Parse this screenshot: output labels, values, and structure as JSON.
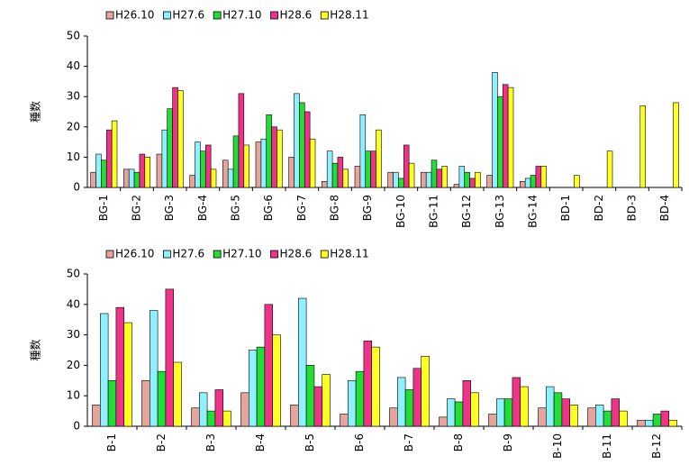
{
  "chart_data": [
    {
      "type": "bar",
      "y_label": "種数",
      "categories": [
        "BG-1",
        "BG-2",
        "BG-3",
        "BG-4",
        "BG-5",
        "BG-6",
        "BG-7",
        "BG-8",
        "BG-9",
        "BG-10",
        "BG-11",
        "BG-12",
        "BG-13",
        "BG-14",
        "BD-1",
        "BD-2",
        "BD-3",
        "BD-4"
      ],
      "series": [
        {
          "name": "H26.10",
          "color": "#e6a49a",
          "values": [
            5,
            6,
            11,
            4,
            9,
            15,
            10,
            2,
            7,
            5,
            5,
            1,
            4,
            2,
            null,
            null,
            null,
            null
          ]
        },
        {
          "name": "H27.6",
          "color": "#8ff0ff",
          "values": [
            11,
            6,
            19,
            15,
            6,
            16,
            31,
            12,
            24,
            5,
            5,
            7,
            38,
            3,
            null,
            null,
            null,
            null
          ]
        },
        {
          "name": "H27.10",
          "color": "#22dd33",
          "values": [
            9,
            5,
            26,
            12,
            17,
            24,
            28,
            8,
            12,
            3,
            9,
            5,
            30,
            4,
            null,
            null,
            null,
            null
          ]
        },
        {
          "name": "H28.6",
          "color": "#ee3388",
          "values": [
            19,
            11,
            33,
            14,
            31,
            20,
            25,
            10,
            12,
            14,
            6,
            3,
            34,
            7,
            null,
            null,
            null,
            null
          ]
        },
        {
          "name": "H28.11",
          "color": "#ffff22",
          "values": [
            22,
            10,
            32,
            6,
            14,
            19,
            16,
            6,
            19,
            8,
            7,
            5,
            33,
            7,
            4,
            12,
            27,
            28
          ]
        }
      ],
      "ylim": [
        0,
        50
      ],
      "yticks": [
        0,
        10,
        20,
        30,
        40,
        50
      ],
      "legend": "top-left"
    },
    {
      "type": "bar",
      "y_label": "種数",
      "categories": [
        "B-1",
        "B-2",
        "B-3",
        "B-4",
        "B-5",
        "B-6",
        "B-7",
        "B-8",
        "B-9",
        "B-10",
        "B-11",
        "B-12"
      ],
      "series": [
        {
          "name": "H26.10",
          "color": "#e6a49a",
          "values": [
            7,
            15,
            6,
            11,
            7,
            4,
            6,
            3,
            4,
            6,
            6,
            2
          ]
        },
        {
          "name": "H27.6",
          "color": "#8ff0ff",
          "values": [
            37,
            38,
            11,
            25,
            42,
            15,
            16,
            9,
            9,
            13,
            7,
            2
          ]
        },
        {
          "name": "H27.10",
          "color": "#22dd33",
          "values": [
            15,
            18,
            5,
            26,
            20,
            18,
            12,
            8,
            9,
            11,
            5,
            4
          ]
        },
        {
          "name": "H28.6",
          "color": "#ee3388",
          "values": [
            39,
            45,
            12,
            40,
            13,
            28,
            19,
            15,
            16,
            9,
            9,
            5
          ]
        },
        {
          "name": "H28.11",
          "color": "#ffff22",
          "values": [
            34,
            21,
            5,
            30,
            17,
            26,
            23,
            11,
            13,
            7,
            5,
            2
          ]
        }
      ],
      "ylim": [
        0,
        50
      ],
      "yticks": [
        0,
        10,
        20,
        30,
        40,
        50
      ],
      "legend": "top-left"
    }
  ]
}
